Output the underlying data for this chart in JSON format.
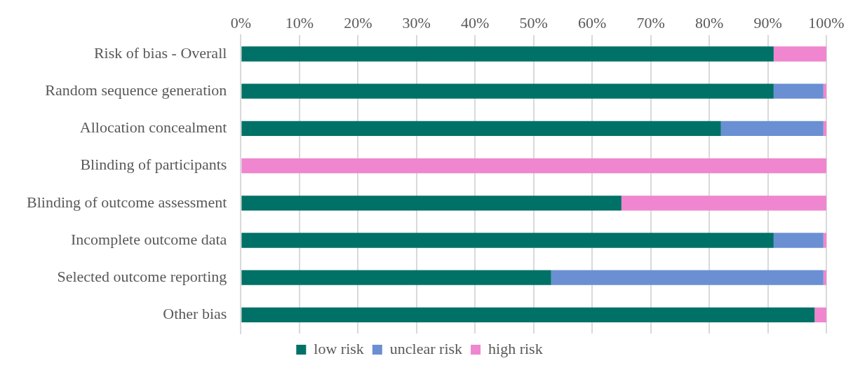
{
  "chart_data": {
    "type": "bar",
    "orientation": "horizontal",
    "stacked": true,
    "categories": [
      "Risk of bias - Overall",
      "Random sequence generation",
      "Allocation concealment",
      "Blinding of participants",
      "Blinding of outcome assessment",
      "Incomplete outcome data",
      "Selected outcome reporting",
      "Other bias"
    ],
    "series": [
      {
        "name": "low risk",
        "color": "#007167",
        "values": [
          91,
          91,
          82,
          0,
          65,
          91,
          53,
          98
        ]
      },
      {
        "name": "unclear risk",
        "color": "#6a8fd3",
        "values": [
          0,
          8.5,
          17.5,
          0,
          0,
          8.5,
          46.5,
          0
        ]
      },
      {
        "name": "high risk",
        "color": "#ef86cf",
        "values": [
          9,
          0.5,
          0.5,
          100,
          35,
          0.5,
          0.5,
          2
        ]
      }
    ],
    "xlim": [
      0,
      100
    ],
    "xticks": [
      {
        "value": 0,
        "label": "0%"
      },
      {
        "value": 10,
        "label": "10%"
      },
      {
        "value": 20,
        "label": "20%"
      },
      {
        "value": 30,
        "label": "30%"
      },
      {
        "value": 40,
        "label": "40%"
      },
      {
        "value": 50,
        "label": "50%"
      },
      {
        "value": 60,
        "label": "60%"
      },
      {
        "value": 70,
        "label": "70%"
      },
      {
        "value": 80,
        "label": "80%"
      },
      {
        "value": 90,
        "label": "90%"
      },
      {
        "value": 100,
        "label": "100%"
      }
    ],
    "grid": "x",
    "legend": "bottom"
  }
}
